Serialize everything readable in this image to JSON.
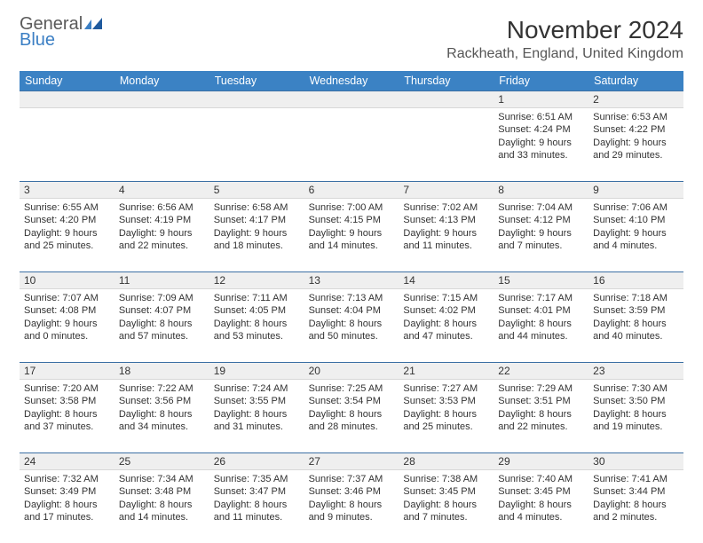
{
  "logo": {
    "word1": "General",
    "word2": "Blue"
  },
  "title": "November 2024",
  "location": "Rackheath, England, United Kingdom",
  "colors": {
    "header_bg": "#3b82c4",
    "header_text": "#ffffff",
    "num_row_bg": "#efefef",
    "week_border": "#3b6fa4",
    "logo_gray": "#5a5a5a",
    "logo_blue": "#3b7fc4"
  },
  "dayNames": [
    "Sunday",
    "Monday",
    "Tuesday",
    "Wednesday",
    "Thursday",
    "Friday",
    "Saturday"
  ],
  "weeks": [
    [
      null,
      null,
      null,
      null,
      null,
      {
        "n": "1",
        "sr": "6:51 AM",
        "ss": "4:24 PM",
        "dl": "9 hours and 33 minutes."
      },
      {
        "n": "2",
        "sr": "6:53 AM",
        "ss": "4:22 PM",
        "dl": "9 hours and 29 minutes."
      }
    ],
    [
      {
        "n": "3",
        "sr": "6:55 AM",
        "ss": "4:20 PM",
        "dl": "9 hours and 25 minutes."
      },
      {
        "n": "4",
        "sr": "6:56 AM",
        "ss": "4:19 PM",
        "dl": "9 hours and 22 minutes."
      },
      {
        "n": "5",
        "sr": "6:58 AM",
        "ss": "4:17 PM",
        "dl": "9 hours and 18 minutes."
      },
      {
        "n": "6",
        "sr": "7:00 AM",
        "ss": "4:15 PM",
        "dl": "9 hours and 14 minutes."
      },
      {
        "n": "7",
        "sr": "7:02 AM",
        "ss": "4:13 PM",
        "dl": "9 hours and 11 minutes."
      },
      {
        "n": "8",
        "sr": "7:04 AM",
        "ss": "4:12 PM",
        "dl": "9 hours and 7 minutes."
      },
      {
        "n": "9",
        "sr": "7:06 AM",
        "ss": "4:10 PM",
        "dl": "9 hours and 4 minutes."
      }
    ],
    [
      {
        "n": "10",
        "sr": "7:07 AM",
        "ss": "4:08 PM",
        "dl": "9 hours and 0 minutes."
      },
      {
        "n": "11",
        "sr": "7:09 AM",
        "ss": "4:07 PM",
        "dl": "8 hours and 57 minutes."
      },
      {
        "n": "12",
        "sr": "7:11 AM",
        "ss": "4:05 PM",
        "dl": "8 hours and 53 minutes."
      },
      {
        "n": "13",
        "sr": "7:13 AM",
        "ss": "4:04 PM",
        "dl": "8 hours and 50 minutes."
      },
      {
        "n": "14",
        "sr": "7:15 AM",
        "ss": "4:02 PM",
        "dl": "8 hours and 47 minutes."
      },
      {
        "n": "15",
        "sr": "7:17 AM",
        "ss": "4:01 PM",
        "dl": "8 hours and 44 minutes."
      },
      {
        "n": "16",
        "sr": "7:18 AM",
        "ss": "3:59 PM",
        "dl": "8 hours and 40 minutes."
      }
    ],
    [
      {
        "n": "17",
        "sr": "7:20 AM",
        "ss": "3:58 PM",
        "dl": "8 hours and 37 minutes."
      },
      {
        "n": "18",
        "sr": "7:22 AM",
        "ss": "3:56 PM",
        "dl": "8 hours and 34 minutes."
      },
      {
        "n": "19",
        "sr": "7:24 AM",
        "ss": "3:55 PM",
        "dl": "8 hours and 31 minutes."
      },
      {
        "n": "20",
        "sr": "7:25 AM",
        "ss": "3:54 PM",
        "dl": "8 hours and 28 minutes."
      },
      {
        "n": "21",
        "sr": "7:27 AM",
        "ss": "3:53 PM",
        "dl": "8 hours and 25 minutes."
      },
      {
        "n": "22",
        "sr": "7:29 AM",
        "ss": "3:51 PM",
        "dl": "8 hours and 22 minutes."
      },
      {
        "n": "23",
        "sr": "7:30 AM",
        "ss": "3:50 PM",
        "dl": "8 hours and 19 minutes."
      }
    ],
    [
      {
        "n": "24",
        "sr": "7:32 AM",
        "ss": "3:49 PM",
        "dl": "8 hours and 17 minutes."
      },
      {
        "n": "25",
        "sr": "7:34 AM",
        "ss": "3:48 PM",
        "dl": "8 hours and 14 minutes."
      },
      {
        "n": "26",
        "sr": "7:35 AM",
        "ss": "3:47 PM",
        "dl": "8 hours and 11 minutes."
      },
      {
        "n": "27",
        "sr": "7:37 AM",
        "ss": "3:46 PM",
        "dl": "8 hours and 9 minutes."
      },
      {
        "n": "28",
        "sr": "7:38 AM",
        "ss": "3:45 PM",
        "dl": "8 hours and 7 minutes."
      },
      {
        "n": "29",
        "sr": "7:40 AM",
        "ss": "3:45 PM",
        "dl": "8 hours and 4 minutes."
      },
      {
        "n": "30",
        "sr": "7:41 AM",
        "ss": "3:44 PM",
        "dl": "8 hours and 2 minutes."
      }
    ]
  ],
  "labels": {
    "sunrise": "Sunrise:",
    "sunset": "Sunset:",
    "daylight": "Daylight:"
  }
}
